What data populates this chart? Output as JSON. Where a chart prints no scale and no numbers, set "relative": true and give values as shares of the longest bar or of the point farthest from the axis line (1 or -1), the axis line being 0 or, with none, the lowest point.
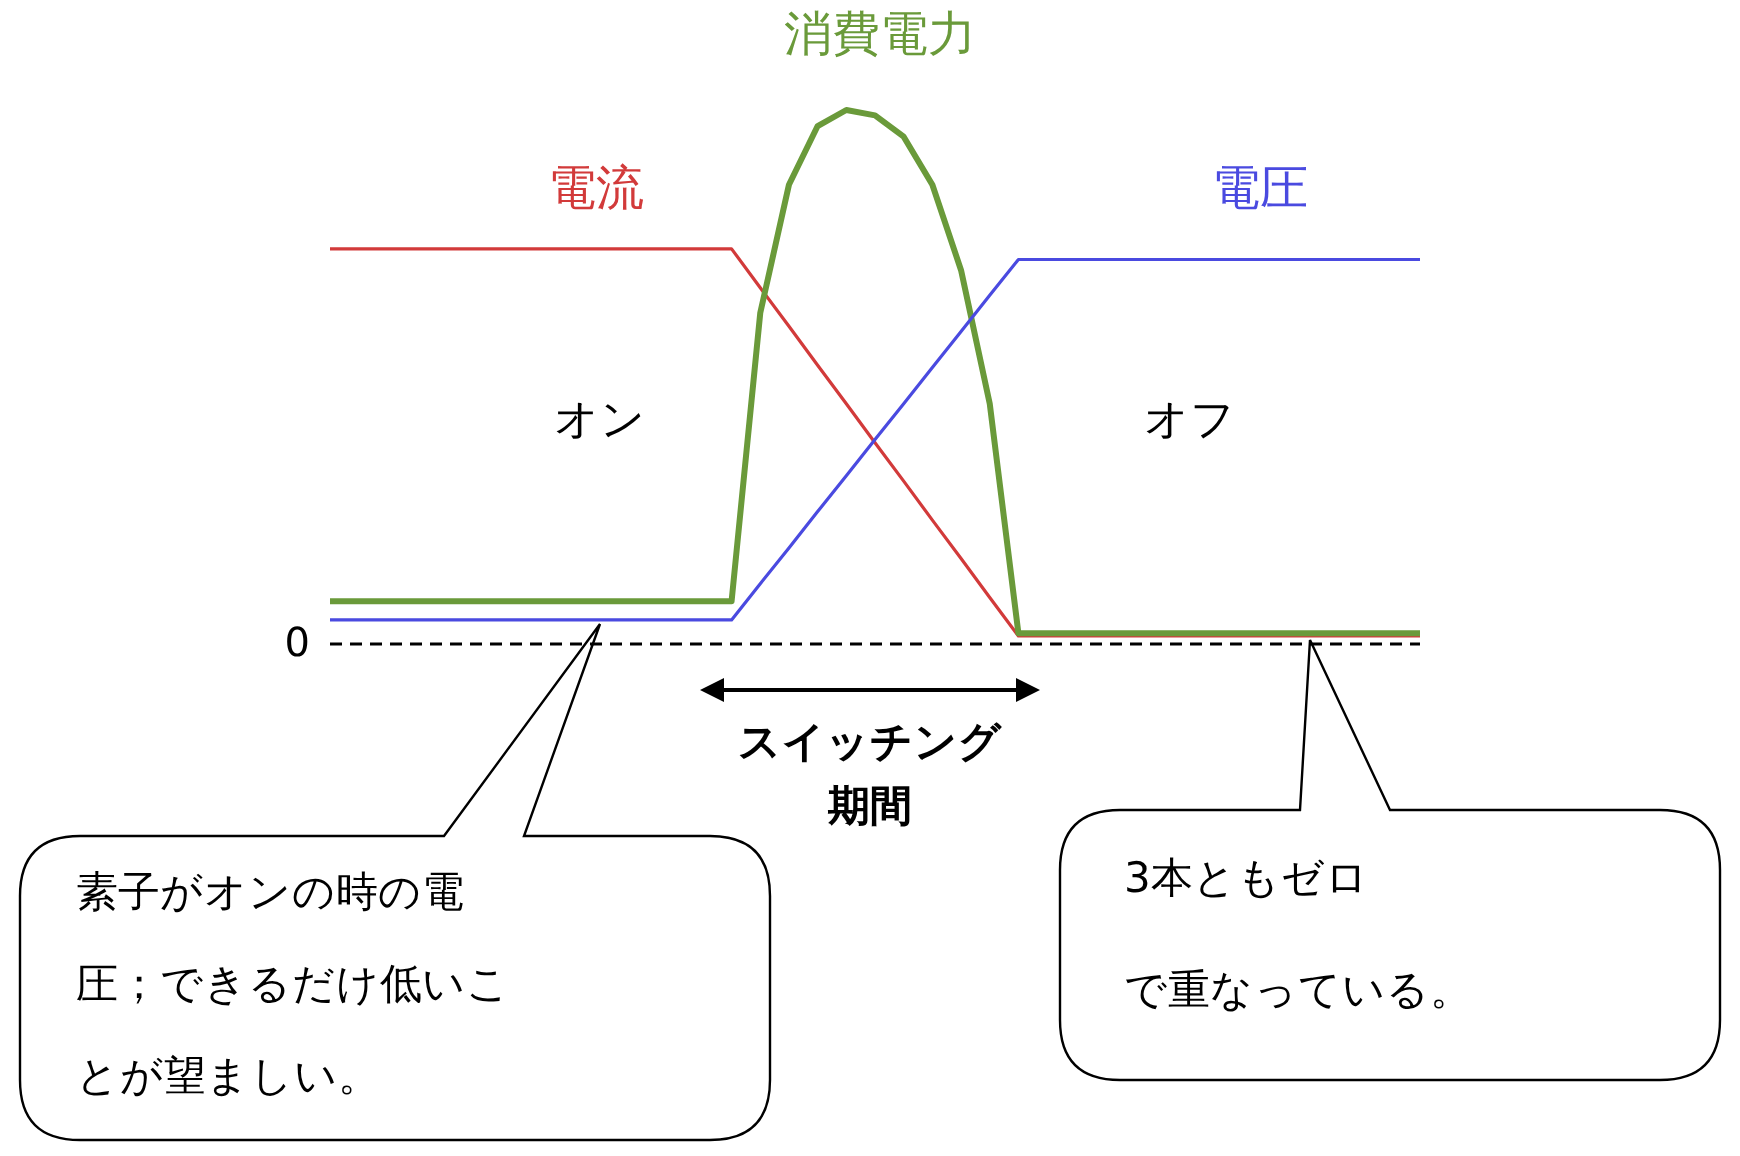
{
  "chart_data": {
    "type": "line",
    "relative": true,
    "categories": [
      null,
      null,
      null,
      null,
      null,
      null,
      null,
      null,
      null,
      null,
      null,
      null,
      null,
      null,
      null,
      null,
      null,
      null,
      null,
      null,
      null,
      null,
      null,
      null,
      null,
      null,
      null,
      null,
      null,
      null,
      null,
      null,
      null,
      null,
      null,
      null,
      null,
      null,
      null
    ],
    "series": [
      {
        "name": "電流",
        "color": "#d23a3a",
        "values": [
          0.74,
          0.74,
          0.74,
          0.74,
          0.74,
          0.74,
          0.74,
          0.74,
          0.74,
          0.74,
          0.74,
          0.74,
          0.74,
          0.74,
          0.74,
          0.667,
          0.595,
          0.522,
          0.45,
          0.377,
          0.305,
          0.232,
          0.16,
          0.087,
          0.015,
          0.015,
          0.015,
          0.015,
          0.015,
          0.015,
          0.015,
          0.015,
          0.015,
          0.015,
          0.015,
          0.015,
          0.015,
          0.015,
          0.015
        ]
      },
      {
        "name": "消費電力",
        "color": "#6a9a3a",
        "values": [
          0.08,
          0.08,
          0.08,
          0.08,
          0.08,
          0.08,
          0.08,
          0.08,
          0.08,
          0.08,
          0.08,
          0.08,
          0.08,
          0.08,
          0.08,
          0.62,
          0.86,
          0.97,
          1,
          0.99,
          0.95,
          0.86,
          0.7,
          0.45,
          0.02,
          0.02,
          0.02,
          0.02,
          0.02,
          0.02,
          0.02,
          0.02,
          0.02,
          0.02,
          0.02,
          0.02,
          0.02,
          0.02,
          0.02
        ]
      },
      {
        "name": "電圧",
        "color": "#4a4ae0",
        "values": [
          0.045,
          0.045,
          0.045,
          0.045,
          0.045,
          0.045,
          0.045,
          0.045,
          0.045,
          0.045,
          0.045,
          0.045,
          0.045,
          0.045,
          0.045,
          0.113,
          0.18,
          0.248,
          0.315,
          0.383,
          0.45,
          0.518,
          0.585,
          0.653,
          0.72,
          0.72,
          0.72,
          0.72,
          0.72,
          0.72,
          0.72,
          0.72,
          0.72,
          0.72,
          0.72,
          0.72,
          0.72,
          0.72,
          0.72
        ]
      }
    ],
    "ref_lines": [
      {
        "axis": "y",
        "value": 0,
        "label": "0",
        "line_style": "dashed",
        "color": "#000000"
      }
    ],
    "annotations": [
      "オン",
      "オフ",
      "スイッチング期間",
      "素子がオンの時の電圧；できるだけ低いことが望ましい。",
      "3本ともゼロで重なっている。"
    ]
  }
}
